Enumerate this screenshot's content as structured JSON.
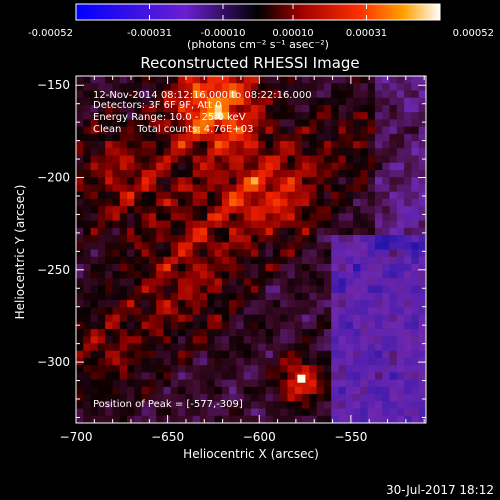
{
  "colorbar": {
    "tick_labels": [
      "-0.00052",
      "-0.00031",
      "-0.00010",
      "0.00010",
      "0.00031",
      "0.00052"
    ],
    "tick_values": [
      -0.00052,
      -0.00031,
      -0.0001,
      0.0001,
      0.00031,
      0.00052
    ],
    "range": [
      -0.00052,
      0.00052
    ],
    "units": "(photons cm⁻² s⁻¹ asec⁻²)",
    "colors": [
      "#0000ff",
      "#7b1fd6",
      "#000000",
      "#8b0000",
      "#ff2a00",
      "#ff9a00",
      "#ffffff"
    ]
  },
  "chart_data": {
    "type": "heatmap",
    "title": "Reconstructed RHESSI Image",
    "xlabel": "Heliocentric X (arcsec)",
    "ylabel": "Heliocentric Y (arcsec)",
    "xlim": [
      -700,
      -509
    ],
    "ylim": [
      -333,
      -145
    ],
    "x_ticks": [
      -700,
      -650,
      -600,
      -550
    ],
    "y_ticks": [
      -150,
      -200,
      -250,
      -300
    ],
    "x_tick_labels": [
      "−700",
      "−650",
      "−600",
      "−550"
    ],
    "y_tick_labels": [
      "−150",
      "−200",
      "−250",
      "−300"
    ],
    "grid": false,
    "peak": {
      "x": -577,
      "y": -309
    },
    "annotations": [
      "12-Nov-2014 08:12:16.000 to 08:22:16.000",
      "Detectors: 3F 6F 9F, Att 0",
      "Energy Range: 10.0 - 25.0 keV",
      "Clean     Total counts: 4.76E+03",
      "Position of Peak = [-577,-309]"
    ]
  },
  "footer": {
    "date": "30-Jul-2017 18:12"
  }
}
